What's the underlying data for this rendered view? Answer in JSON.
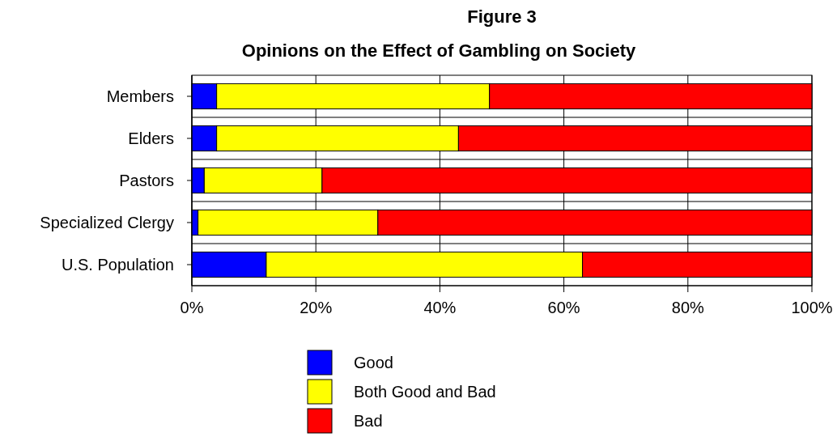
{
  "chart_data": {
    "type": "bar",
    "orientation": "horizontal",
    "stacked": true,
    "title": "Figure 3",
    "subtitle": "Opinions on the Effect of Gambling on Society",
    "categories": [
      "Members",
      "Elders",
      "Pastors",
      "Specialized Clergy",
      "U.S. Population"
    ],
    "series": [
      {
        "name": "Good",
        "color": "#0000ff",
        "values": [
          4,
          4,
          2,
          1,
          12
        ]
      },
      {
        "name": "Both Good and Bad",
        "color": "#ffff00",
        "values": [
          44,
          39,
          19,
          29,
          51
        ]
      },
      {
        "name": "Bad",
        "color": "#ff0000",
        "values": [
          52,
          57,
          79,
          70,
          37
        ]
      }
    ],
    "xlim": [
      0,
      100
    ],
    "xticks": [
      {
        "value": 0,
        "label": "0%"
      },
      {
        "value": 20,
        "label": "20%"
      },
      {
        "value": 40,
        "label": "40%"
      },
      {
        "value": 60,
        "label": "60%"
      },
      {
        "value": 80,
        "label": "80%"
      },
      {
        "value": 100,
        "label": "100%"
      }
    ],
    "grid": true,
    "legend": "bottom"
  }
}
